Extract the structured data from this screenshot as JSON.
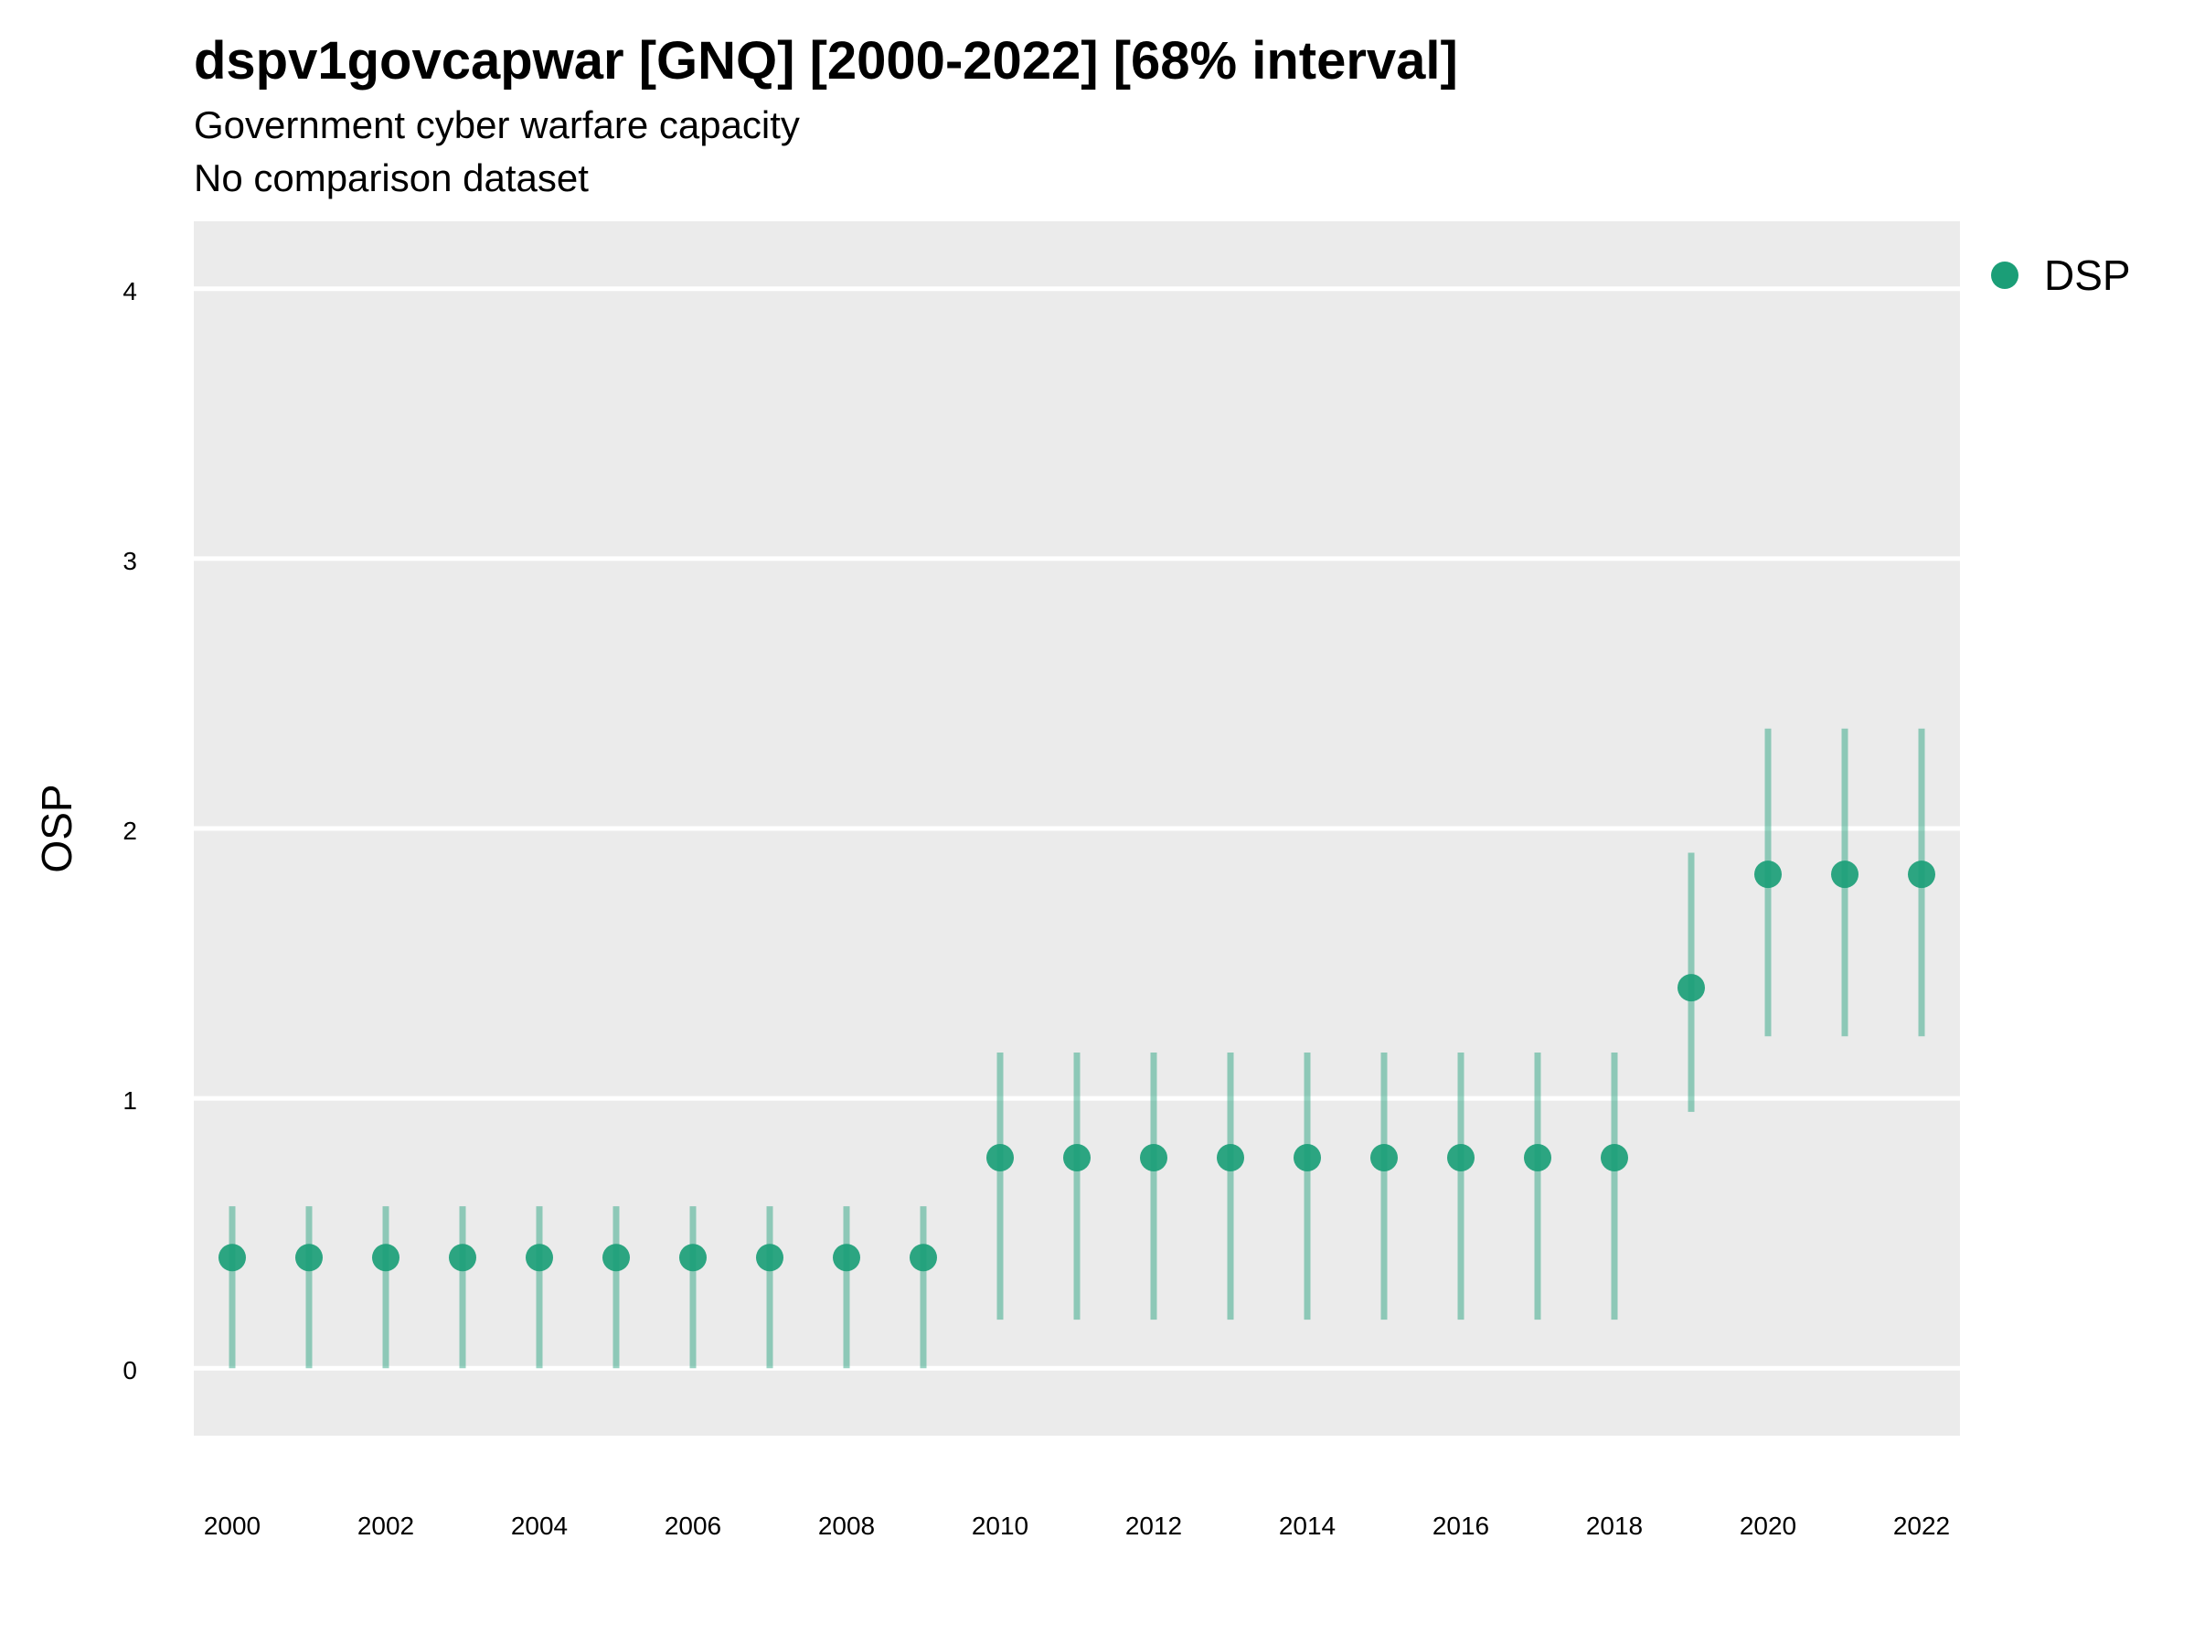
{
  "chart_data": {
    "type": "scatter",
    "title": "dspv1govcapwar [GNQ] [2000-2022] [68% interval]",
    "subtitle": "Government cyber warfare capacity",
    "subtitle2": "No comparison dataset",
    "ylabel": "OSP",
    "xlabel": "",
    "ylim": [
      -0.25,
      4.25
    ],
    "xlim": [
      1999.5,
      2022.5
    ],
    "yticks": [
      0,
      1,
      2,
      3,
      4
    ],
    "xticks": [
      2000,
      2002,
      2004,
      2006,
      2008,
      2010,
      2012,
      2014,
      2016,
      2018,
      2020,
      2022
    ],
    "grid": true,
    "legend_position": "right",
    "series": [
      {
        "name": "DSP",
        "color": "#1b9e77",
        "x": [
          2000,
          2001,
          2002,
          2003,
          2004,
          2005,
          2006,
          2007,
          2008,
          2009,
          2010,
          2011,
          2012,
          2013,
          2014,
          2015,
          2016,
          2017,
          2018,
          2019,
          2020,
          2021,
          2022
        ],
        "y": [
          0.41,
          0.41,
          0.41,
          0.41,
          0.41,
          0.41,
          0.41,
          0.41,
          0.41,
          0.41,
          0.78,
          0.78,
          0.78,
          0.78,
          0.78,
          0.78,
          0.78,
          0.78,
          0.78,
          1.41,
          1.83,
          1.83,
          1.83
        ],
        "lower": [
          0.0,
          0.0,
          0.0,
          0.0,
          0.0,
          0.0,
          0.0,
          0.0,
          0.0,
          0.0,
          0.18,
          0.18,
          0.18,
          0.18,
          0.18,
          0.18,
          0.18,
          0.18,
          0.18,
          0.95,
          1.23,
          1.23,
          1.23
        ],
        "upper": [
          0.6,
          0.6,
          0.6,
          0.6,
          0.6,
          0.6,
          0.6,
          0.6,
          0.6,
          0.6,
          1.17,
          1.17,
          1.17,
          1.17,
          1.17,
          1.17,
          1.17,
          1.17,
          1.17,
          1.91,
          2.37,
          2.37,
          2.37
        ]
      }
    ]
  }
}
